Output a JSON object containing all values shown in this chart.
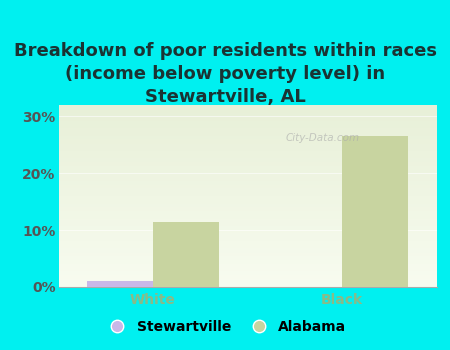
{
  "title": "Breakdown of poor residents within races\n(income below poverty level) in\nStewartville, AL",
  "categories": [
    "White",
    "Black"
  ],
  "stewartville_values": [
    1.0,
    0.0
  ],
  "alabama_values": [
    11.5,
    26.5
  ],
  "stewartville_color": "#c9b8e8",
  "alabama_color": "#c8d4a0",
  "background_color": "#00f0f0",
  "plot_bg_top": "#e8f0d8",
  "plot_bg_bottom": "#f8fcf0",
  "yticks": [
    0,
    10,
    20,
    30
  ],
  "ylim": [
    0,
    32
  ],
  "bar_width": 0.35,
  "xticklabel_color": "#88bb88",
  "yticklabel_color": "#555555",
  "title_fontsize": 13,
  "tick_fontsize": 10,
  "legend_label_stewartville": "Stewartville",
  "legend_label_alabama": "Alabama",
  "watermark": "City-Data.com",
  "title_color": "#1a3333"
}
